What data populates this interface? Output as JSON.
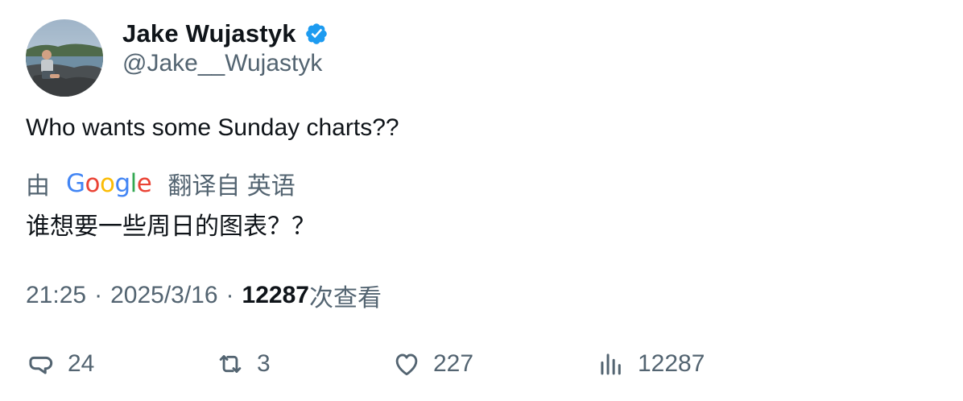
{
  "author": {
    "display_name": "Jake Wujastyk",
    "handle": "@Jake__Wujastyk",
    "verified": true
  },
  "tweet": {
    "text": "Who wants some Sunday charts??"
  },
  "translation": {
    "prefix": "由",
    "provider_logo": "Google",
    "suffix": "翻译自 英语",
    "translated_text": "谁想要一些周日的图表？？"
  },
  "meta": {
    "time": "21:25",
    "separator": "·",
    "date": "2025/3/16",
    "views_count": "12287",
    "views_label": "次查看"
  },
  "actions": {
    "replies": "24",
    "retweets": "3",
    "likes": "227",
    "views": "12287"
  },
  "colors": {
    "verified": "#1d9bf0",
    "secondary_text": "#536471",
    "primary_text": "#0f1419"
  }
}
